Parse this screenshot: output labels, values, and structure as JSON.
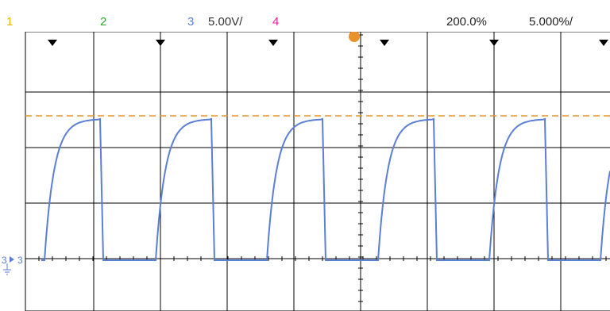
{
  "header": {
    "ch1_label": "1",
    "ch2_label": "2",
    "ch3_label": "3",
    "ch3_scale": "5.00V/",
    "ch4_label": "4",
    "trigger_delay": "200.0%",
    "timebase": "5.000%/"
  },
  "colors": {
    "ch1": "#e6b800",
    "ch2": "#2ea82e",
    "ch3": "#5b7fd4",
    "ch4": "#e0209c",
    "trigger_level_line": "#e8922a",
    "grid": "#000000",
    "background": "#ffffff"
  },
  "screen": {
    "ground_marker_label": "3",
    "ground_symbol": "ground-icon",
    "trigger_icon": "trigger-marker-icon",
    "marker_icon": "triangle-down-icon"
  },
  "waveform": {
    "channel": "3",
    "type": "periodic rising-exponential pulses",
    "cycles_visible": 5
  }
}
